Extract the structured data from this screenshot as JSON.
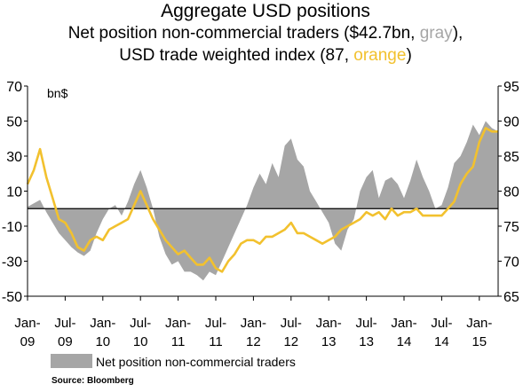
{
  "title": "Aggregate USD positions",
  "subtitle": {
    "line1_pre": "Net position non-commercial traders ($42.7bn, ",
    "line1_hl": "gray",
    "line1_post": "),",
    "line2_pre": "USD trade weighted index (87, ",
    "line2_hl": "orange",
    "line2_post": ")"
  },
  "source": "Source:  Bloomberg",
  "colors": {
    "gray_fill": "#a6a6a6",
    "gray_text": "#a6a6a6",
    "orange": "#f2c12e",
    "axis": "#000000"
  },
  "chart_data": {
    "type": "area",
    "left_axis": {
      "unit_label": "bn$",
      "ylim": [
        -50,
        70
      ],
      "ticks": [
        "70",
        "50",
        "30",
        "10",
        "-10",
        "-30",
        "-50"
      ]
    },
    "right_axis": {
      "ylim": [
        65,
        95
      ],
      "ticks": [
        "95",
        "90",
        "85",
        "80",
        "75",
        "70",
        "65"
      ]
    },
    "x_ticks": [
      {
        "line1": "Jan-",
        "line2": "09",
        "t": 0
      },
      {
        "line1": "Jul-",
        "line2": "09",
        "t": 6
      },
      {
        "line1": "Jan-",
        "line2": "10",
        "t": 12
      },
      {
        "line1": "Jul-",
        "line2": "10",
        "t": 18
      },
      {
        "line1": "Jan-",
        "line2": "11",
        "t": 24
      },
      {
        "line1": "Jul-",
        "line2": "11",
        "t": 30
      },
      {
        "line1": "Jan-",
        "line2": "12",
        "t": 36
      },
      {
        "line1": "Jul-",
        "line2": "12",
        "t": 42
      },
      {
        "line1": "Jan-",
        "line2": "13",
        "t": 48
      },
      {
        "line1": "Jul-",
        "line2": "13",
        "t": 54
      },
      {
        "line1": "Jan-",
        "line2": "14",
        "t": 60
      },
      {
        "line1": "Jul-",
        "line2": "14",
        "t": 66
      },
      {
        "line1": "Jan-",
        "line2": "15",
        "t": 72
      }
    ],
    "x_range_months": [
      0,
      75
    ],
    "series": [
      {
        "name": "Net position non-commercial traders",
        "kind": "area",
        "axis": "left",
        "points": [
          [
            0,
            1
          ],
          [
            1,
            3
          ],
          [
            2,
            5
          ],
          [
            3,
            -2
          ],
          [
            4,
            -8
          ],
          [
            5,
            -14
          ],
          [
            6,
            -18
          ],
          [
            7,
            -22
          ],
          [
            8,
            -25
          ],
          [
            9,
            -27
          ],
          [
            10,
            -24
          ],
          [
            11,
            -14
          ],
          [
            12,
            -6
          ],
          [
            13,
            0
          ],
          [
            14,
            2
          ],
          [
            15,
            -4
          ],
          [
            16,
            4
          ],
          [
            17,
            14
          ],
          [
            18,
            22
          ],
          [
            19,
            12
          ],
          [
            20,
            0
          ],
          [
            21,
            -16
          ],
          [
            22,
            -26
          ],
          [
            23,
            -32
          ],
          [
            24,
            -30
          ],
          [
            25,
            -36
          ],
          [
            26,
            -36
          ],
          [
            27,
            -38
          ],
          [
            28,
            -41
          ],
          [
            29,
            -36
          ],
          [
            30,
            -38
          ],
          [
            31,
            -30
          ],
          [
            32,
            -22
          ],
          [
            33,
            -14
          ],
          [
            34,
            -6
          ],
          [
            35,
            2
          ],
          [
            36,
            12
          ],
          [
            37,
            20
          ],
          [
            38,
            14
          ],
          [
            39,
            26
          ],
          [
            40,
            18
          ],
          [
            41,
            36
          ],
          [
            42,
            40
          ],
          [
            43,
            28
          ],
          [
            44,
            24
          ],
          [
            45,
            10
          ],
          [
            46,
            4
          ],
          [
            47,
            -2
          ],
          [
            48,
            -8
          ],
          [
            49,
            -20
          ],
          [
            50,
            -24
          ],
          [
            51,
            -12
          ],
          [
            52,
            -6
          ],
          [
            53,
            10
          ],
          [
            54,
            18
          ],
          [
            55,
            22
          ],
          [
            56,
            6
          ],
          [
            57,
            16
          ],
          [
            58,
            18
          ],
          [
            59,
            14
          ],
          [
            60,
            6
          ],
          [
            61,
            16
          ],
          [
            62,
            28
          ],
          [
            63,
            18
          ],
          [
            64,
            10
          ],
          [
            65,
            0
          ],
          [
            66,
            2
          ],
          [
            67,
            12
          ],
          [
            68,
            26
          ],
          [
            69,
            30
          ],
          [
            70,
            38
          ],
          [
            71,
            48
          ],
          [
            72,
            42
          ],
          [
            73,
            50
          ],
          [
            74,
            46
          ],
          [
            75,
            44
          ]
        ]
      },
      {
        "name": "USD trade weighted index",
        "kind": "line",
        "axis": "right",
        "points": [
          [
            0,
            81
          ],
          [
            1,
            83
          ],
          [
            2,
            86
          ],
          [
            3,
            82
          ],
          [
            4,
            79
          ],
          [
            5,
            76
          ],
          [
            6,
            75.5
          ],
          [
            7,
            74
          ],
          [
            8,
            72
          ],
          [
            9,
            71.5
          ],
          [
            10,
            73
          ],
          [
            11,
            73.5
          ],
          [
            12,
            73
          ],
          [
            13,
            74.5
          ],
          [
            14,
            75
          ],
          [
            15,
            75.5
          ],
          [
            16,
            76
          ],
          [
            17,
            78
          ],
          [
            18,
            80
          ],
          [
            19,
            78
          ],
          [
            20,
            76
          ],
          [
            21,
            74.5
          ],
          [
            22,
            73
          ],
          [
            23,
            72
          ],
          [
            24,
            71
          ],
          [
            25,
            71.5
          ],
          [
            26,
            70.5
          ],
          [
            27,
            69.5
          ],
          [
            28,
            69.5
          ],
          [
            29,
            70.5
          ],
          [
            30,
            69
          ],
          [
            31,
            68.5
          ],
          [
            32,
            70
          ],
          [
            33,
            71
          ],
          [
            34,
            72.5
          ],
          [
            35,
            73
          ],
          [
            36,
            73
          ],
          [
            37,
            72.5
          ],
          [
            38,
            73.5
          ],
          [
            39,
            73.5
          ],
          [
            40,
            74
          ],
          [
            41,
            74.5
          ],
          [
            42,
            75.5
          ],
          [
            43,
            74
          ],
          [
            44,
            74
          ],
          [
            45,
            73.5
          ],
          [
            46,
            73
          ],
          [
            47,
            72.5
          ],
          [
            48,
            73
          ],
          [
            49,
            73.5
          ],
          [
            50,
            74.5
          ],
          [
            51,
            75
          ],
          [
            52,
            75.5
          ],
          [
            53,
            76
          ],
          [
            54,
            77
          ],
          [
            55,
            76.5
          ],
          [
            56,
            77
          ],
          [
            57,
            76
          ],
          [
            58,
            77.5
          ],
          [
            59,
            76.5
          ],
          [
            60,
            77
          ],
          [
            61,
            77
          ],
          [
            62,
            77.5
          ],
          [
            63,
            76.5
          ],
          [
            64,
            76.5
          ],
          [
            65,
            76.5
          ],
          [
            66,
            76.5
          ],
          [
            67,
            77.5
          ],
          [
            68,
            78.5
          ],
          [
            69,
            81
          ],
          [
            70,
            82.5
          ],
          [
            71,
            83.5
          ],
          [
            72,
            87
          ],
          [
            73,
            89
          ],
          [
            74,
            88.5
          ],
          [
            75,
            88.5
          ]
        ]
      }
    ],
    "legend": {
      "position": "bottom",
      "label": "Net position non-commercial traders"
    }
  }
}
